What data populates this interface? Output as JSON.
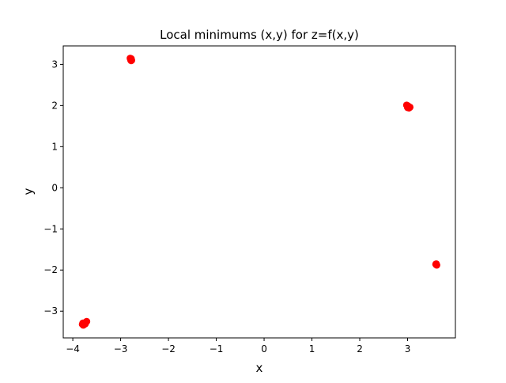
{
  "colors": {
    "marker": "#ff0000",
    "axes": "#000000",
    "background": "#ffffff"
  },
  "chart_data": {
    "type": "scatter",
    "title": "Local minimums (x,y) for z=f(x,y)",
    "xlabel": "x",
    "ylabel": "y",
    "xlim": [
      -4.2,
      4.0
    ],
    "ylim": [
      -3.65,
      3.45
    ],
    "xticks": [
      -4,
      -3,
      -2,
      -1,
      0,
      1,
      2,
      3
    ],
    "xtick_labels": [
      "−4",
      "−3",
      "−2",
      "−1",
      "0",
      "1",
      "2",
      "3"
    ],
    "yticks": [
      -3,
      -2,
      -1,
      0,
      1,
      2,
      3
    ],
    "ytick_labels": [
      "−3",
      "−2",
      "−1",
      "0",
      "1",
      "2",
      "3"
    ],
    "grid": false,
    "legend": "none",
    "marker_color": "#ff0000",
    "series": [
      {
        "x": [
          -2.79,
          -2.78,
          -2.8,
          -2.79,
          -2.77,
          -2.78,
          2.98,
          3.0,
          3.02,
          3.05,
          3.01,
          2.99,
          3.03,
          3.6,
          3.61,
          3.59,
          3.6,
          -3.8,
          -3.76,
          -3.72,
          -3.78,
          -3.74,
          -3.71,
          -3.79
        ],
        "y": [
          3.13,
          3.09,
          3.15,
          3.11,
          3.1,
          3.14,
          2.01,
          1.95,
          1.97,
          1.96,
          1.99,
          2.0,
          1.94,
          -1.85,
          -1.88,
          -1.86,
          -1.87,
          -3.32,
          -3.3,
          -3.26,
          -3.34,
          -3.31,
          -3.25,
          -3.29
        ]
      }
    ]
  }
}
